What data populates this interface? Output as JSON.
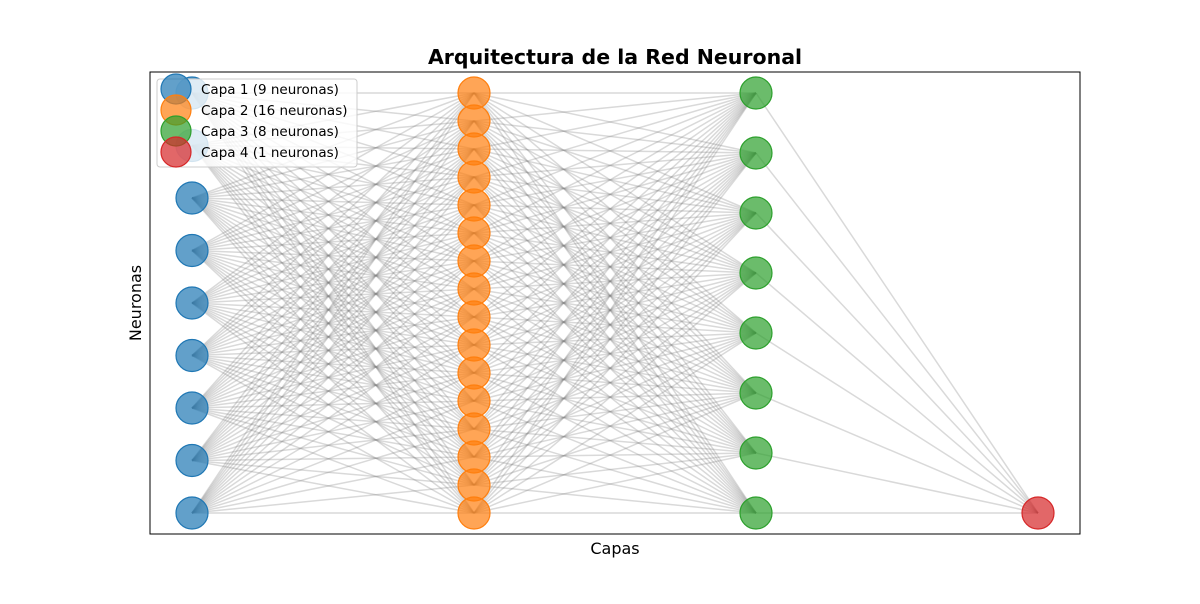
{
  "title": "Arquitectura de la Red Neuronal",
  "xlabel": "Capas",
  "ylabel": "Neuronas",
  "chart_data": {
    "type": "network-diagram",
    "layers": [
      {
        "index": 1,
        "neurons": 9,
        "label": "Capa 1 (9 neuronas)",
        "color": "#1f77b4"
      },
      {
        "index": 2,
        "neurons": 16,
        "label": "Capa 2 (16 neuronas)",
        "color": "#ff7f0e"
      },
      {
        "index": 3,
        "neurons": 8,
        "label": "Capa 3 (8 neuronas)",
        "color": "#2ca02c"
      },
      {
        "index": 4,
        "neurons": 1,
        "label": "Capa 4 (1 neuronas)",
        "color": "#d62728"
      }
    ],
    "connections": "fully-connected between consecutive layers",
    "edge_color": "#808080",
    "legend_position": "upper-left",
    "grid": false,
    "ticks": false
  }
}
